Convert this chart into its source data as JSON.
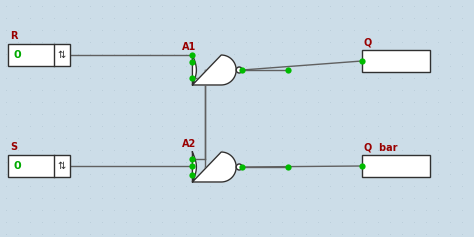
{
  "bg_color": "#ccdde8",
  "dot_color": "#b8ccd8",
  "wire_color": "#606060",
  "gate_color": "#303030",
  "junction_color": "#00bb00",
  "label_color": "#990000",
  "value_color": "#00aa00",
  "box_bg": "#ffffff",
  "R_label": "R",
  "S_label": "S",
  "A1_label": "A1",
  "A2_label": "A2",
  "Q_label": "Q",
  "Qbar_label": "Q  bar",
  "R_val": "0",
  "S_val": "0",
  "figw": 4.74,
  "figh": 2.37,
  "dpi": 100
}
